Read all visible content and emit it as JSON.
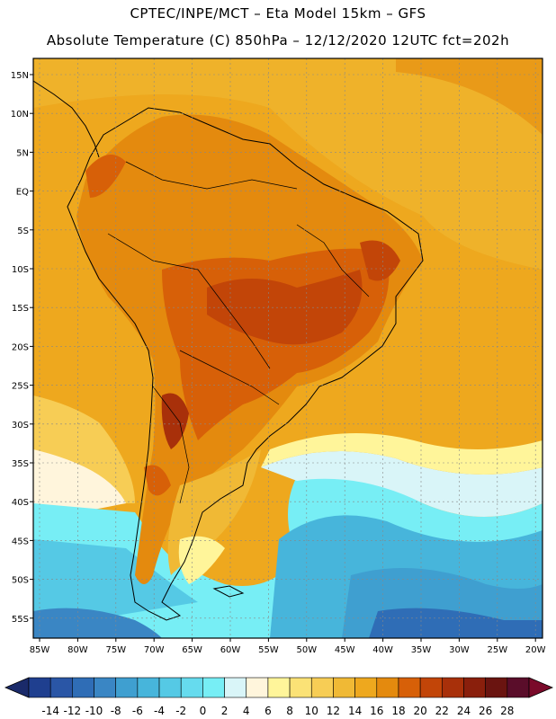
{
  "header": {
    "line1": "CPTEC/INPE/MCT –  Eta Model 15km – GFS",
    "line2": "Absolute Temperature (C) 850hPa – 12/12/2020 12UTC fct=202h"
  },
  "axes": {
    "lat_labels": [
      "15N",
      "10N",
      "5N",
      "EQ",
      "5S",
      "10S",
      "15S",
      "20S",
      "25S",
      "30S",
      "35S",
      "40S",
      "45S",
      "50S",
      "55S"
    ],
    "lon_labels": [
      "85W",
      "80W",
      "75W",
      "70W",
      "65W",
      "60W",
      "55W",
      "50W",
      "45W",
      "40W",
      "35W",
      "30W",
      "25W",
      "20W"
    ]
  },
  "colorbar": {
    "labels": [
      "-14",
      "-12",
      "-10",
      "-8",
      "-6",
      "-4",
      "-2",
      "0",
      "2",
      "4",
      "6",
      "8",
      "10",
      "12",
      "14",
      "16",
      "18",
      "20",
      "22",
      "24",
      "26",
      "28"
    ],
    "colors": [
      "#1f3f8f",
      "#2a56a6",
      "#2f6db6",
      "#3a86c4",
      "#3f9fd0",
      "#47b5db",
      "#55c9e5",
      "#66dbee",
      "#77eef5",
      "#d9f5f8",
      "#fff5dc",
      "#fff59a",
      "#fbe276",
      "#f7cd55",
      "#f0b935",
      "#eea81e",
      "#e48a0e",
      "#d76008",
      "#c24508",
      "#a8300a",
      "#8a1f0c",
      "#6a1410",
      "#5a0d2a"
    ]
  },
  "legend_endcaps": {
    "low": "#1a2a6a",
    "high": "#7a0a2a"
  }
}
